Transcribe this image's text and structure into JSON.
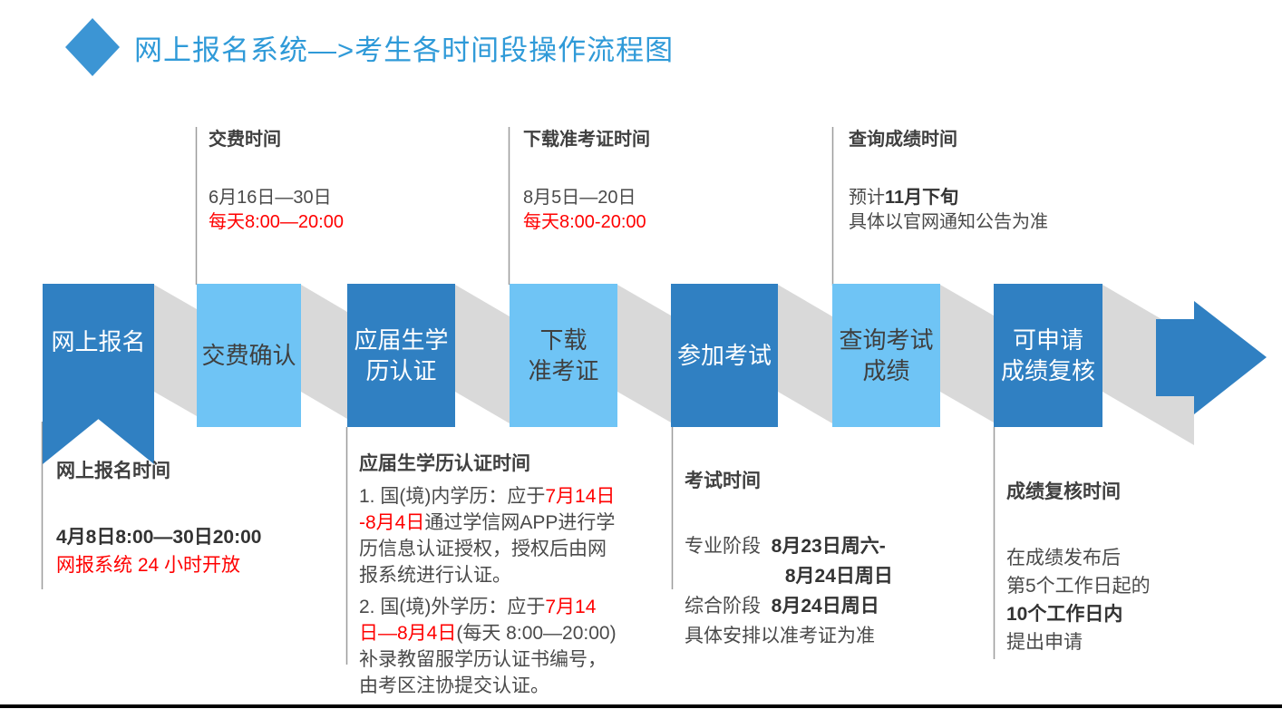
{
  "title": "网上报名系统—>考生各时间段操作流程图",
  "steps": [
    {
      "label": "网上报名",
      "tone": "dark"
    },
    {
      "label": "交费确认",
      "tone": "light"
    },
    {
      "label": "应届生学\n历认证",
      "tone": "dark"
    },
    {
      "label": "下载\n准考证",
      "tone": "light"
    },
    {
      "label": "参加考试",
      "tone": "dark"
    },
    {
      "label": "查询考试\n成绩",
      "tone": "light"
    },
    {
      "label": "可申请\n成绩复核",
      "tone": "dark"
    }
  ],
  "top_notes": [
    {
      "heading": "交费时间",
      "body": [
        {
          "t": "6月16日—30日\n"
        },
        {
          "t": "每天8:00—20:00",
          "s": "red"
        }
      ]
    },
    {
      "heading": "下载准考证时间",
      "body": [
        {
          "t": "8月5日—20日\n"
        },
        {
          "t": "每天8:00-20:00",
          "s": "red"
        }
      ]
    },
    {
      "heading": "查询成绩时间",
      "body": [
        {
          "t": "预计"
        },
        {
          "t": "11月下旬",
          "s": "bold"
        },
        {
          "t": "\n具体以官网通知公告为准"
        }
      ]
    }
  ],
  "bottom_notes": [
    {
      "heading": "网上报名时间",
      "body": [
        {
          "t": "4月8日8:00—30日20:00",
          "s": "bold"
        },
        {
          "t": "\n"
        },
        {
          "t": "网报系统 24 小时开放",
          "s": "red"
        }
      ]
    },
    {
      "heading": "应届生学历认证时间",
      "p1": [
        {
          "t": "1. 国(境)内学历：应于"
        },
        {
          "t": "7月14日\n-8月4日",
          "s": "red"
        },
        {
          "t": "通过学信网APP进行学\n历信息认证授权，授权后由网\n报系统进行认证。"
        }
      ],
      "p2": [
        {
          "t": "2. 国(境)外学历：应于"
        },
        {
          "t": "7月14\n日—8月4日",
          "s": "red"
        },
        {
          "t": "(每天 8:00—20:00)\n补录教留服学历认证书编号，\n由考区注协提交认证。"
        }
      ]
    },
    {
      "heading": "考试时间",
      "body": [
        {
          "t": "专业阶段  "
        },
        {
          "t": "8月23日周六-",
          "s": "bold"
        },
        {
          "t": "\n　　　　　 "
        },
        {
          "t": "8月24日周日",
          "s": "bold"
        },
        {
          "t": "\n综合阶段  "
        },
        {
          "t": "8月24日周日",
          "s": "bold"
        },
        {
          "t": "\n具体安排以准考证为准"
        }
      ]
    },
    {
      "heading": "成绩复核时间",
      "body": [
        {
          "t": "在成绩发布后\n第5个工作日起的\n"
        },
        {
          "t": "10个工作日内",
          "s": "bold"
        },
        {
          "t": "\n提出申请"
        }
      ]
    }
  ],
  "colors": {
    "dark_blue": "#3080C2",
    "light_blue": "#6FC4F5",
    "title": "#2F9AD8",
    "diamond": "#3C95D4",
    "gray_band": "#D9D9D9",
    "line": "#9C9C9C",
    "red": "#FF0000",
    "heading": "#3F3F3F",
    "body": "#4A4A4A",
    "rule": "#000000"
  }
}
